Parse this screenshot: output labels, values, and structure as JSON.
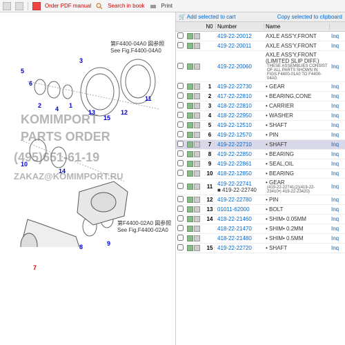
{
  "toolbar": {
    "order_pdf": "Order PDF manual",
    "search": "Search in book",
    "print": "Print",
    "add_cart": "Add selected to cart",
    "copy_clip": "Copy selected to clipboard"
  },
  "watermark": {
    "line1": "KOMIMPORT",
    "line2": "PARTS ORDER",
    "line3": "(495)651-61-19",
    "line4": "ZAKAZ@KOMIMPORT.RU"
  },
  "figrefs": {
    "top": {
      "jp": "第F4400-04A0 図参照",
      "en": "See Fig.F4400-04A0"
    },
    "bot": {
      "jp": "第F4400-02A0 図参照",
      "en": "See Fig.F4400-02A0"
    }
  },
  "headers": {
    "no": "N0",
    "number": "Number",
    "name": "Name"
  },
  "callouts": [
    "1",
    "2",
    "3",
    "4",
    "5",
    "6",
    "7",
    "8",
    "9",
    "10",
    "11",
    "12",
    "13",
    "14",
    "15"
  ],
  "rows": [
    {
      "no": "",
      "num": "419-22-20012",
      "name": "AXLE ASS'Y,FRONT",
      "link": "Inq"
    },
    {
      "no": "",
      "num": "419-22-20011",
      "name": "AXLE ASS'Y,FRONT",
      "link": "Inq"
    },
    {
      "no": "",
      "num": "419-22-20060",
      "name": "AXLE ASS'Y,FRONT (LIMITED SLIP DIFF.)",
      "link": "Inq",
      "note": "THESE ASSEMBLIES CONSIST OF ALL PARTS SHOWN IN FIGS.F4400-01A0 TO F4400-04A0."
    },
    {
      "no": "1",
      "num": "419-22-22730",
      "name": "• GEAR",
      "link": "Inq"
    },
    {
      "no": "2",
      "num": "417-22-22810",
      "name": "• BEARING,CONE",
      "link": "Inq"
    },
    {
      "no": "3",
      "num": "418-22-22810",
      "name": "• CARRIER",
      "link": "Inq"
    },
    {
      "no": "4",
      "num": "418-22-22950",
      "name": "• WASHER",
      "link": "Inq"
    },
    {
      "no": "5",
      "num": "419-22-12510",
      "name": "• SHAFT",
      "link": "Inq"
    },
    {
      "no": "6",
      "num": "419-22-12570",
      "name": "• PIN",
      "link": "Inq"
    },
    {
      "no": "7",
      "num": "419-22-22710",
      "name": "• SHAFT",
      "link": "Inq",
      "hl": true
    },
    {
      "no": "8",
      "num": "419-22-22850",
      "name": "• BEARING",
      "link": "Inq"
    },
    {
      "no": "9",
      "num": "419-22-22861",
      "name": "• SEAL,OIL",
      "link": "Inq"
    },
    {
      "no": "10",
      "num": "418-22-12850",
      "name": "• BEARING",
      "link": "Inq"
    },
    {
      "no": "11",
      "num": "419-22-22741",
      "name": "• GEAR",
      "link": "Inq",
      "sub": "■ 419-22-22740",
      "subnote": "(419-22-22741(2)(419-22-23410•) 419-22-23420)"
    },
    {
      "no": "12",
      "num": "419-22-22780",
      "name": "• PIN",
      "link": "Inq"
    },
    {
      "no": "13",
      "num": "01011-62000",
      "name": "• BOLT",
      "link": "Inq"
    },
    {
      "no": "14",
      "num": "418-22-21460",
      "name": "• SHIM• 0.05MM",
      "link": "Inq"
    },
    {
      "no": "",
      "num": "418-22-21470",
      "name": "• SHIM• 0.2MM",
      "link": "Inq"
    },
    {
      "no": "",
      "num": "418-22-21480",
      "name": "• SHIM• 0.5MM",
      "link": "Inq"
    },
    {
      "no": "15",
      "num": "419-22-22720",
      "name": "• SHAFT",
      "link": "Inq"
    }
  ]
}
